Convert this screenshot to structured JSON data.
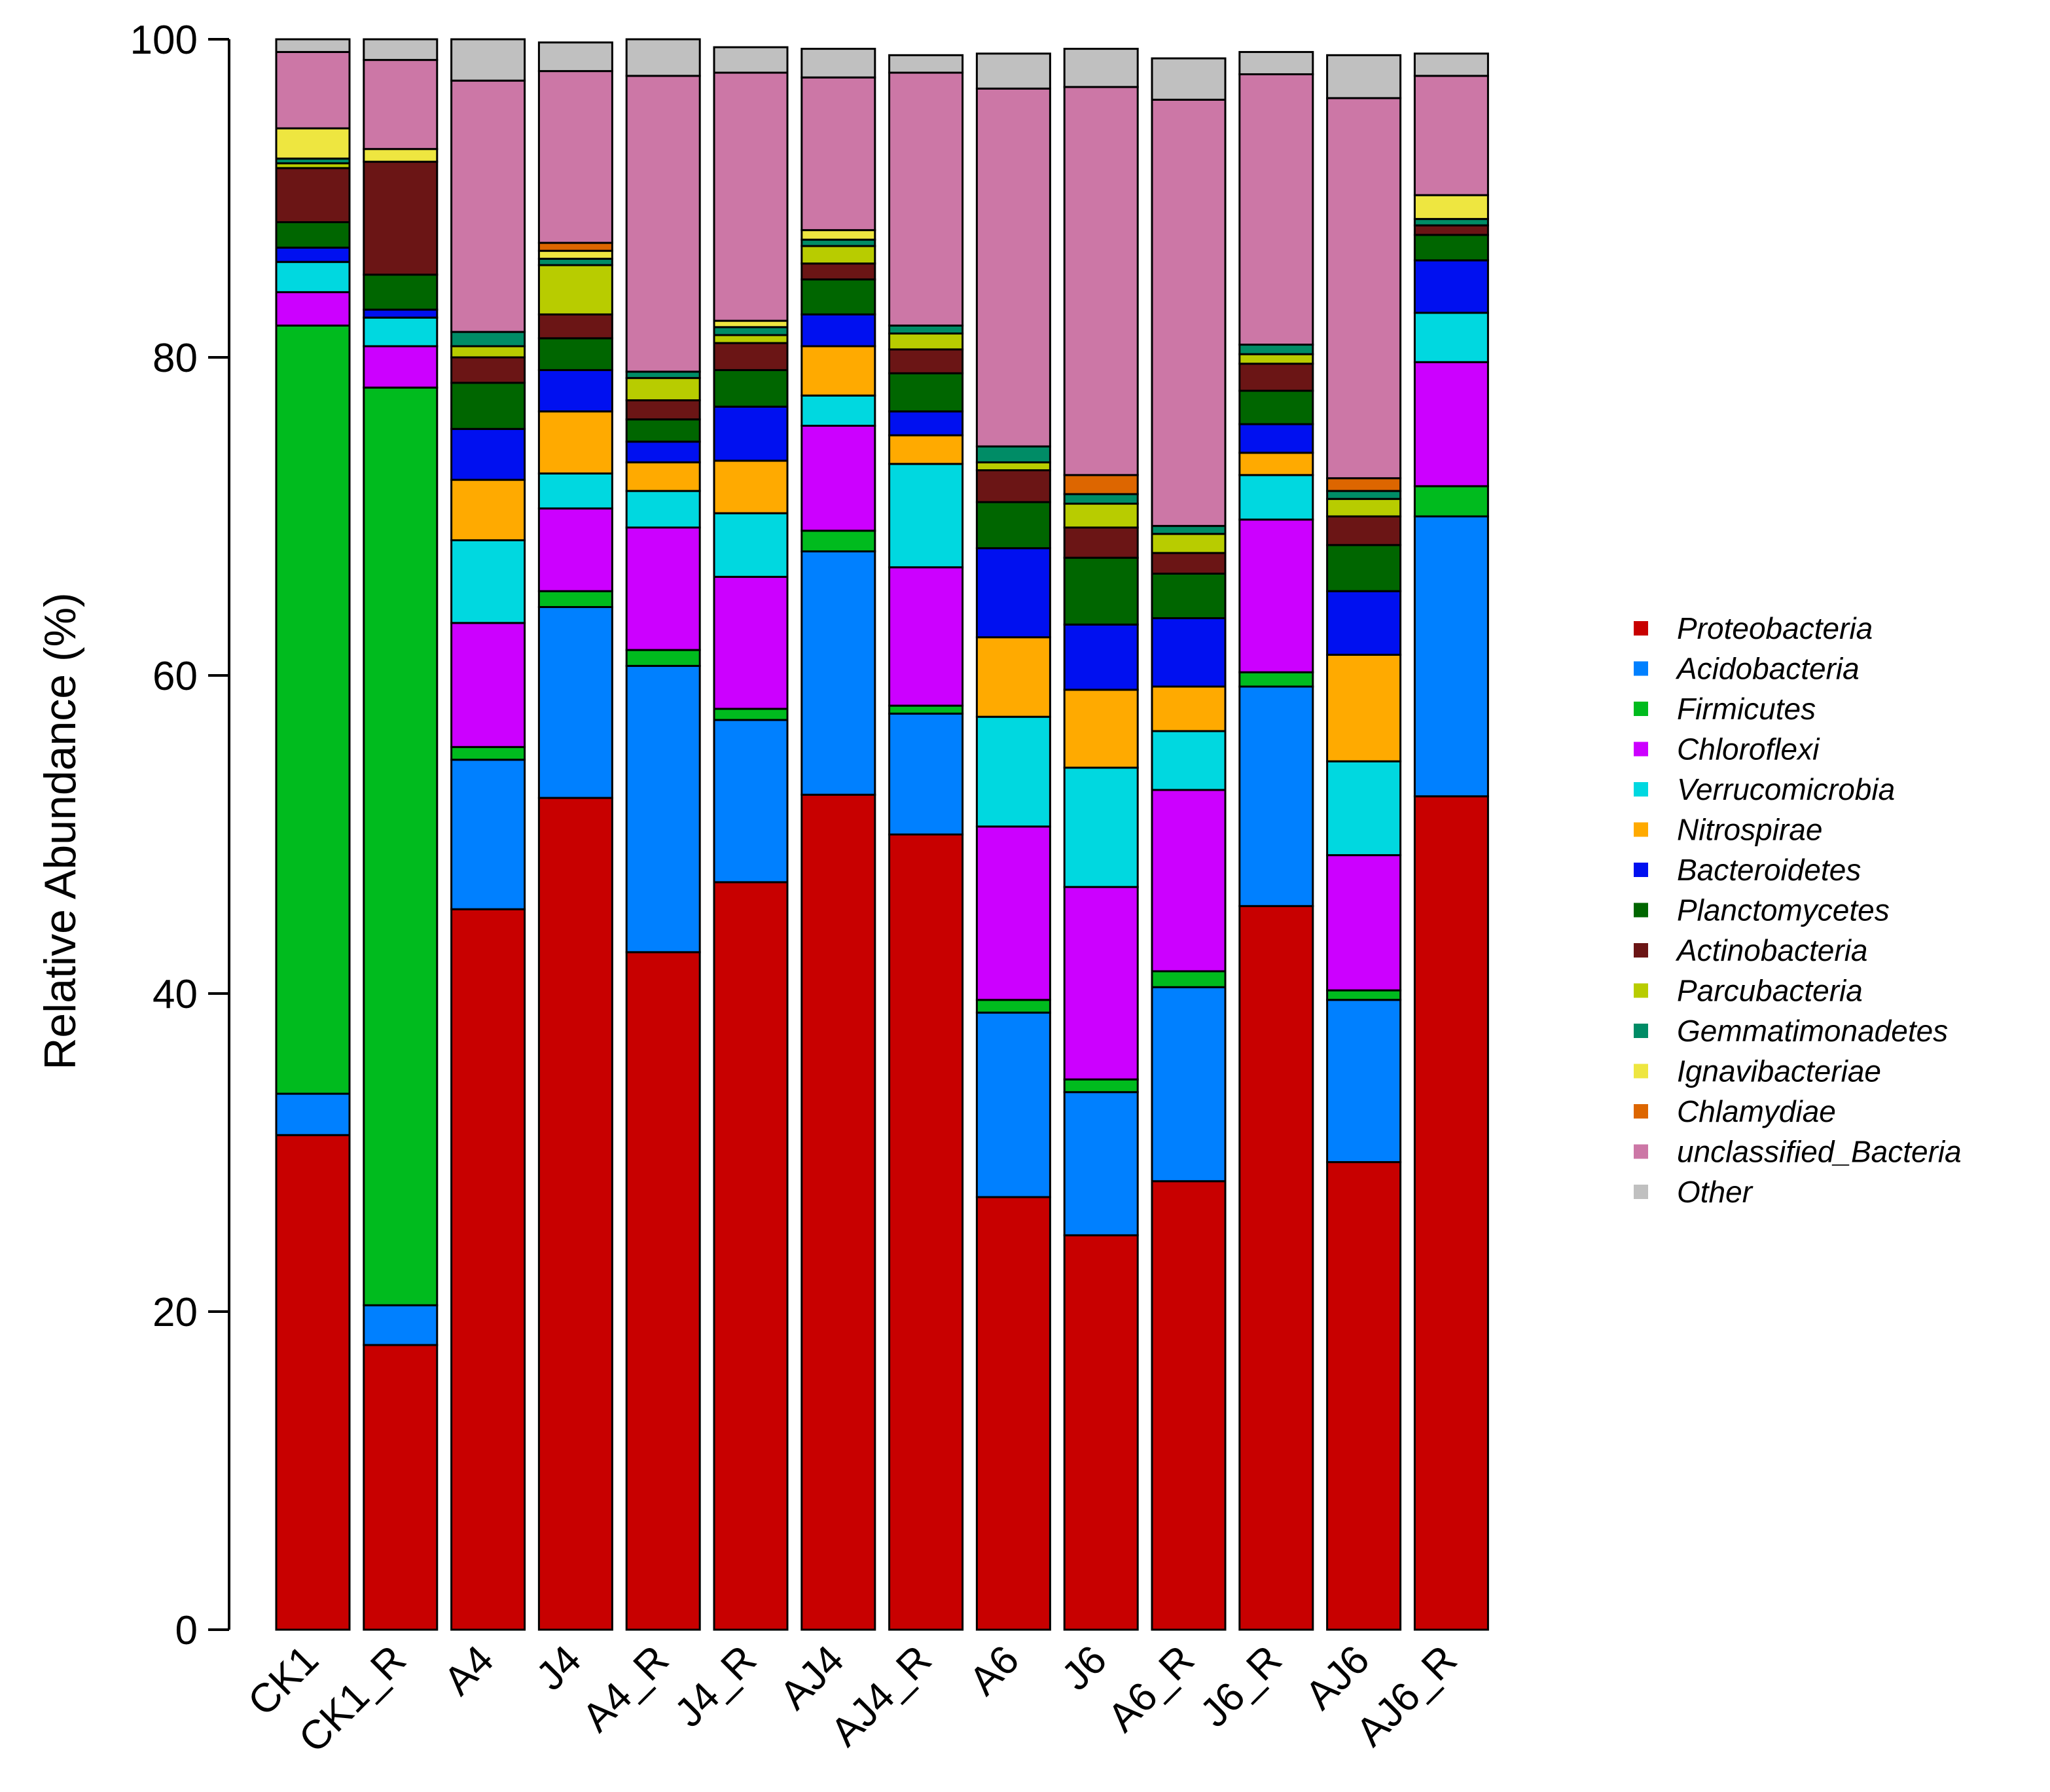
{
  "chart_data": {
    "type": "bar",
    "stacked": true,
    "ylabel": "Relative Abundance (%)",
    "xlabel": "",
    "ylim": [
      0,
      100
    ],
    "yticks": [
      0,
      20,
      40,
      60,
      80,
      100
    ],
    "legend_position": "right",
    "categories": [
      "CK1",
      "CK1_R",
      "A4",
      "J4",
      "A4_R",
      "J4_R",
      "AJ4",
      "AJ4_R",
      "A6",
      "J6",
      "A6_R",
      "J6_R",
      "AJ6",
      "AJ6_R"
    ],
    "series": [
      {
        "name": "Proteobacteria",
        "color": "#C80000",
        "values": [
          31.1,
          17.9,
          45.3,
          52.3,
          42.6,
          47.0,
          52.5,
          50.0,
          27.2,
          24.8,
          28.2,
          45.5,
          29.4,
          52.4
        ]
      },
      {
        "name": "Acidobacteria",
        "color": "#0080FF",
        "values": [
          2.6,
          2.5,
          9.4,
          12.0,
          18.0,
          10.2,
          15.3,
          7.6,
          11.6,
          9.0,
          12.2,
          13.8,
          10.2,
          17.6
        ]
      },
      {
        "name": "Firmicutes",
        "color": "#00BB1E",
        "values": [
          48.3,
          57.7,
          0.8,
          1.0,
          1.0,
          0.7,
          1.3,
          0.5,
          0.8,
          0.8,
          1.0,
          0.9,
          0.6,
          1.9
        ]
      },
      {
        "name": "Chloroflexi",
        "color": "#CC00FF",
        "values": [
          2.1,
          2.6,
          7.8,
          5.2,
          7.7,
          8.3,
          6.6,
          8.7,
          10.9,
          12.1,
          11.4,
          9.6,
          8.5,
          7.8
        ]
      },
      {
        "name": "Verrucomicrobia",
        "color": "#00D8E0",
        "values": [
          1.9,
          1.8,
          5.2,
          2.2,
          2.3,
          4.0,
          1.9,
          6.5,
          6.9,
          7.5,
          3.7,
          2.8,
          5.9,
          3.1
        ]
      },
      {
        "name": "Nitrospirae",
        "color": "#FFAA00",
        "values": [
          0.0,
          0.0,
          3.8,
          3.9,
          1.8,
          3.3,
          3.1,
          1.8,
          5.0,
          4.9,
          2.8,
          1.4,
          6.7,
          0.0
        ]
      },
      {
        "name": "Bacteroidetes",
        "color": "#0010F0",
        "values": [
          0.9,
          0.5,
          3.2,
          2.6,
          1.3,
          3.4,
          2.0,
          1.5,
          5.6,
          4.1,
          4.3,
          1.8,
          4.0,
          3.3
        ]
      },
      {
        "name": "Planctomycetes",
        "color": "#006600",
        "values": [
          1.6,
          2.2,
          2.9,
          2.0,
          1.4,
          2.3,
          2.2,
          2.4,
          2.9,
          4.2,
          2.8,
          2.1,
          2.9,
          1.6
        ]
      },
      {
        "name": "Actinobacteria",
        "color": "#6B1515",
        "values": [
          3.4,
          7.1,
          1.6,
          1.5,
          1.2,
          1.7,
          1.0,
          1.5,
          2.0,
          1.9,
          1.3,
          1.7,
          1.8,
          0.6
        ]
      },
      {
        "name": "Parcubacteria",
        "color": "#B8CC00",
        "values": [
          0.3,
          0.0,
          0.7,
          3.1,
          1.4,
          0.5,
          1.1,
          1.0,
          0.5,
          1.5,
          1.2,
          0.6,
          1.1,
          0.0
        ]
      },
      {
        "name": "Gemmatimonadetes",
        "color": "#008C66",
        "values": [
          0.3,
          0.0,
          0.9,
          0.4,
          0.4,
          0.5,
          0.4,
          0.5,
          1.0,
          0.6,
          0.5,
          0.6,
          0.5,
          0.4
        ]
      },
      {
        "name": "Ignavibacteriae",
        "color": "#EEE640",
        "values": [
          1.9,
          0.8,
          0.0,
          0.5,
          0.0,
          0.4,
          0.6,
          0.0,
          0.0,
          0.0,
          0.0,
          0.0,
          0.0,
          1.5
        ]
      },
      {
        "name": "Chlamydiae",
        "color": "#DD6600",
        "values": [
          0.0,
          0.0,
          0.0,
          0.5,
          0.0,
          0.0,
          0.0,
          0.0,
          0.0,
          1.2,
          0.0,
          0.0,
          0.8,
          0.0
        ]
      },
      {
        "name": "unclassified_Bacteria",
        "color": "#CC77A6",
        "values": [
          4.8,
          5.6,
          15.8,
          10.8,
          18.6,
          15.6,
          9.6,
          15.9,
          22.5,
          24.4,
          26.8,
          17.0,
          23.9,
          7.5
        ]
      },
      {
        "name": "Other",
        "color": "#C0C0C0",
        "values": [
          0.8,
          1.3,
          2.6,
          1.8,
          2.3,
          1.6,
          1.8,
          1.1,
          2.2,
          2.4,
          2.6,
          1.4,
          2.7,
          1.4
        ]
      }
    ]
  }
}
